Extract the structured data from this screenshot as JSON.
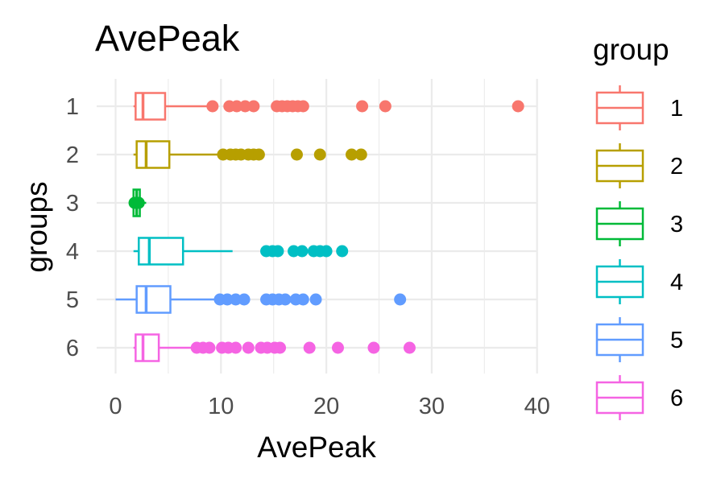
{
  "chart_data": {
    "type": "boxplot",
    "orientation": "horizontal",
    "title": "AvePeak",
    "xlabel": "AvePeak",
    "ylabel": "groups",
    "xlim": [
      -1,
      40.5
    ],
    "x_ticks": [
      0,
      10,
      20,
      30,
      40
    ],
    "x_tick_labels": [
      "0",
      "10",
      "20",
      "30",
      "40"
    ],
    "categories": [
      "1",
      "2",
      "3",
      "4",
      "5",
      "6"
    ],
    "grid": true,
    "legend": {
      "title": "group",
      "position": "right",
      "labels": [
        "1",
        "2",
        "3",
        "4",
        "5",
        "6"
      ]
    },
    "series": [
      {
        "group": "1",
        "color": "#F8766D",
        "whisker_low": 1.7,
        "q1": 1.9,
        "median": 2.6,
        "q3": 4.7,
        "whisker_high": 9.0,
        "outliers": [
          9.2,
          10.8,
          11.5,
          12.3,
          13.1,
          15.3,
          15.8,
          16.3,
          16.8,
          17.3,
          17.8,
          23.4,
          25.6,
          38.2
        ]
      },
      {
        "group": "2",
        "color": "#B79F00",
        "whisker_low": 1.7,
        "q1": 2.0,
        "median": 2.9,
        "q3": 5.1,
        "whisker_high": 10.0,
        "outliers": [
          10.2,
          10.9,
          11.4,
          11.9,
          12.6,
          13.1,
          13.6,
          17.2,
          19.4,
          22.4,
          23.3
        ]
      },
      {
        "group": "3",
        "color": "#00BA38",
        "whisker_low": 1.5,
        "q1": 1.7,
        "median": 2.0,
        "q3": 2.3,
        "whisker_high": 2.9,
        "outliers": [
          1.8,
          2.0,
          2.2
        ]
      },
      {
        "group": "4",
        "color": "#00BFC4",
        "whisker_low": 1.7,
        "q1": 2.2,
        "median": 3.2,
        "q3": 6.4,
        "whisker_high": 11.1,
        "outliers": [
          14.3,
          14.9,
          15.4,
          16.9,
          17.7,
          18.8,
          19.4,
          20.0,
          21.5
        ]
      },
      {
        "group": "5",
        "color": "#619CFF",
        "whisker_low": 0.0,
        "q1": 2.0,
        "median": 2.9,
        "q3": 5.2,
        "whisker_high": 9.7,
        "outliers": [
          9.9,
          10.6,
          11.4,
          12.2,
          14.3,
          14.9,
          15.5,
          16.1,
          17.1,
          17.8,
          19.0,
          27.0
        ]
      },
      {
        "group": "6",
        "color": "#F564E3",
        "whisker_low": 1.7,
        "q1": 1.9,
        "median": 2.6,
        "q3": 4.1,
        "whisker_high": 7.4,
        "outliers": [
          7.7,
          8.3,
          8.9,
          10.1,
          10.7,
          11.4,
          12.6,
          13.8,
          14.4,
          15.1,
          15.6,
          18.4,
          21.1,
          24.5,
          27.9
        ]
      }
    ]
  }
}
